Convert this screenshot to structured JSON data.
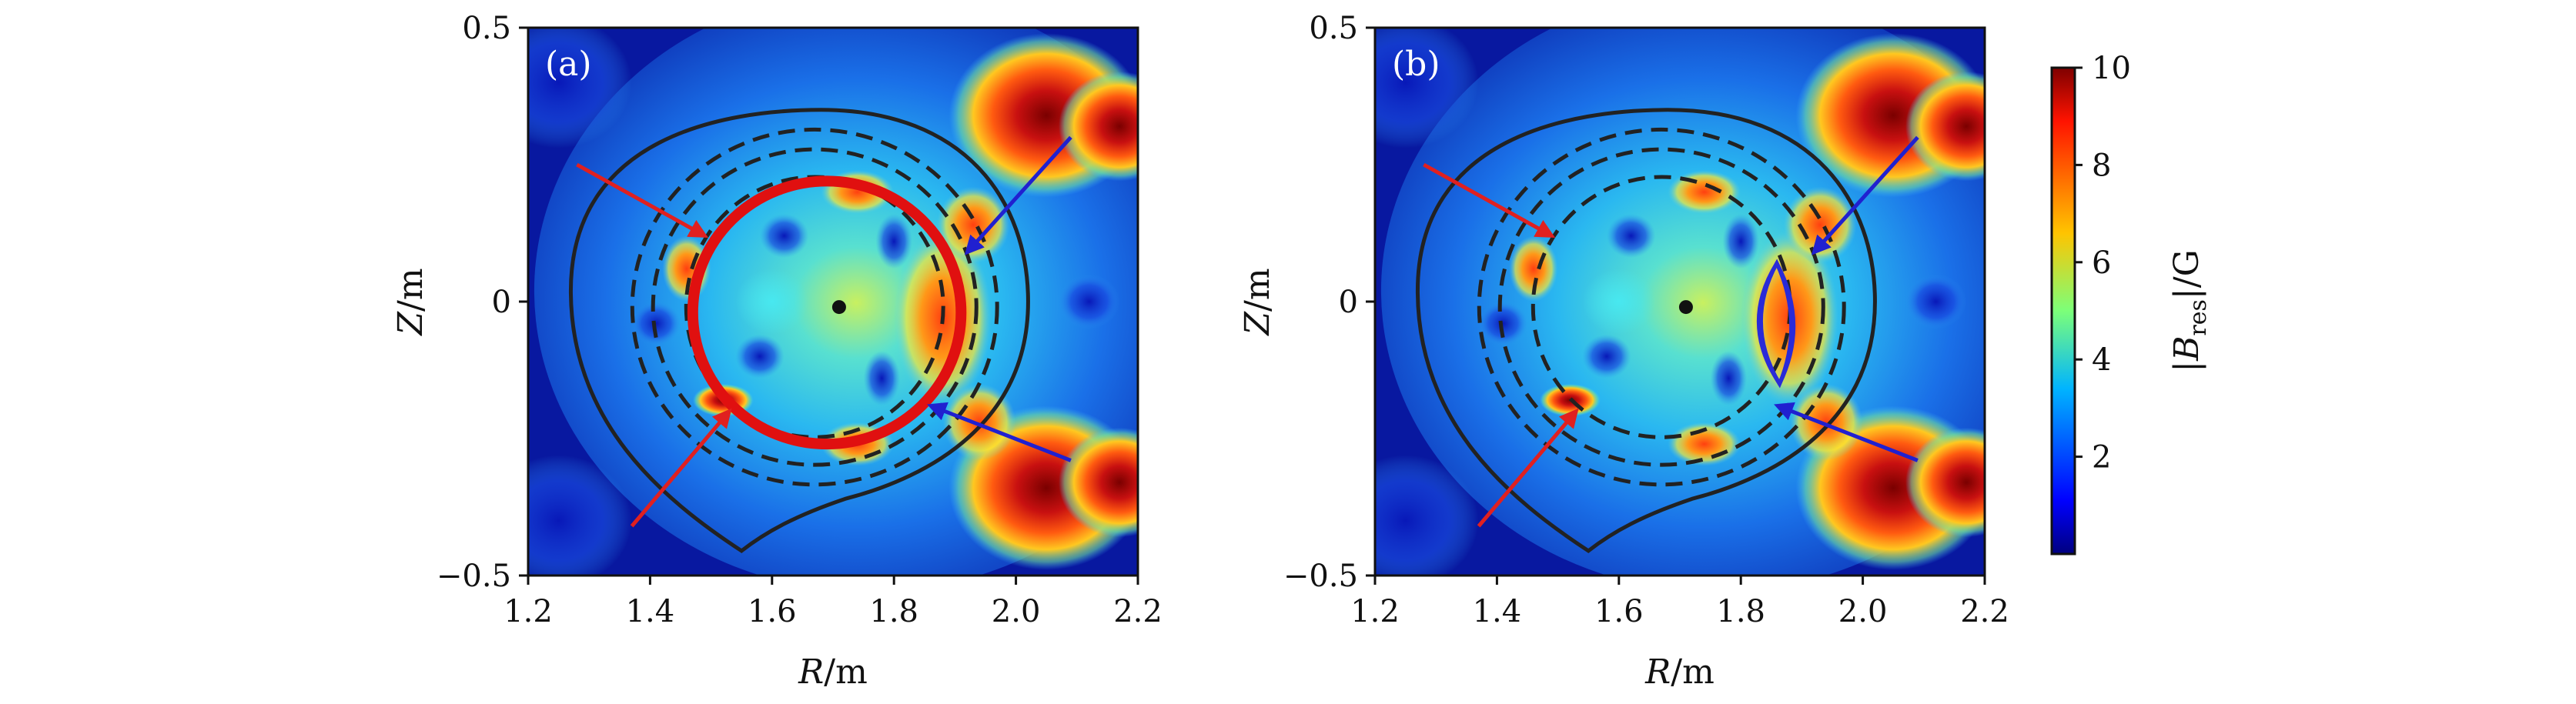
{
  "chart_data": {
    "type": "heatmap",
    "colorbar": {
      "label_main": "|B",
      "label_sub": "res",
      "label_unit": "|/G",
      "range": [
        0,
        10
      ],
      "ticks": [
        "2",
        "4",
        "6",
        "8",
        "10"
      ],
      "colormap": "jet"
    },
    "panels": [
      {
        "id": "a",
        "label": "(a)",
        "xlabel": "R/m",
        "ylabel": "Z/m",
        "xlim": [
          1.2,
          2.2
        ],
        "ylim": [
          -0.5,
          0.5
        ],
        "xticks": [
          "1.2",
          "1.4",
          "1.6",
          "1.8",
          "2.0",
          "2.2"
        ],
        "yticks": [
          "0.5",
          "0",
          "−0.5"
        ],
        "magnetic_axis": [
          1.71,
          -0.01
        ],
        "island_overlay": {
          "color": "#e01010",
          "shape": "ring",
          "center": [
            1.69,
            -0.02
          ],
          "rx": 0.22,
          "ry": 0.24
        },
        "arrows": [
          {
            "color": "#e02020",
            "from": [
              1.28,
              0.25
            ],
            "to": [
              1.49,
              0.12
            ]
          },
          {
            "color": "#e02020",
            "from": [
              1.37,
              -0.41
            ],
            "to": [
              1.53,
              -0.2
            ]
          },
          {
            "color": "#2020d0",
            "from": [
              2.09,
              0.3
            ],
            "to": [
              1.92,
              0.09
            ]
          },
          {
            "color": "#2020d0",
            "from": [
              2.09,
              -0.29
            ],
            "to": [
              1.86,
              -0.19
            ]
          }
        ]
      },
      {
        "id": "b",
        "label": "(b)",
        "xlabel": "R/m",
        "ylabel": "Z/m",
        "xlim": [
          1.2,
          2.2
        ],
        "ylim": [
          -0.5,
          0.5
        ],
        "xticks": [
          "1.2",
          "1.4",
          "1.6",
          "1.8",
          "2.0",
          "2.2"
        ],
        "yticks": [
          "0.5",
          "0",
          "−0.5"
        ],
        "magnetic_axis": [
          1.71,
          -0.01
        ],
        "island_overlay": {
          "color": "#2a2ad8",
          "shape": "crescent",
          "center": [
            1.85,
            -0.04
          ],
          "rx": 0.045,
          "ry": 0.11
        },
        "arrows": [
          {
            "color": "#e02020",
            "from": [
              1.28,
              0.25
            ],
            "to": [
              1.49,
              0.12
            ]
          },
          {
            "color": "#e02020",
            "from": [
              1.37,
              -0.41
            ],
            "to": [
              1.53,
              -0.2
            ]
          },
          {
            "color": "#2020d0",
            "from": [
              2.09,
              0.3
            ],
            "to": [
              1.92,
              0.09
            ]
          },
          {
            "color": "#2020d0",
            "from": [
              2.09,
              -0.29
            ],
            "to": [
              1.86,
              -0.19
            ]
          }
        ]
      }
    ]
  }
}
